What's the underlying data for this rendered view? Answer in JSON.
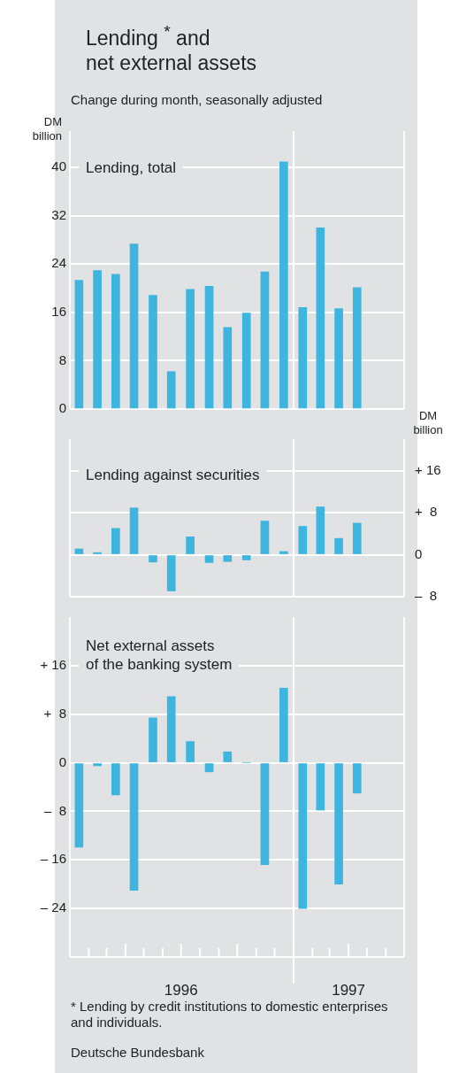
{
  "chart_data": [
    {
      "type": "bar",
      "title": "Lending $^{*}$ and\nnet external assets",
      "subtitle": "Change during month, seasonally adjusted",
      "ylabel": "DM billion",
      "x": [
        "1996-01-16",
        "1996-02-15",
        "1996-03-16",
        "1996-04-15",
        "1996-05-16",
        "1996-06-15",
        "1996-07-16",
        "1996-08-16",
        "1996-09-15",
        "1996-10-16",
        "1996-11-15",
        "1996-12-16",
        "1997-01-16",
        "1997-02-14",
        "1997-03-16",
        "1997-04-15"
      ],
      "xlim": [
        "1996-01-01",
        "1997-07-01"
      ],
      "ylim": [
        0,
        46
      ],
      "yticks": [
        0,
        8,
        16,
        24,
        32,
        40
      ],
      "grid": "y",
      "legend": false,
      "tick_labels": "y",
      "ref_lines": [
        {
          "axis": "x",
          "value": "1997-01-01",
          "color": "#ffffff"
        }
      ],
      "series": [
        {
          "name": "Lending, total",
          "color": "#3db5de",
          "values": [
            21.3,
            22.9,
            22.3,
            27.3,
            18.8,
            6.2,
            19.8,
            20.3,
            13.5,
            15.9,
            22.7,
            40.9,
            16.8,
            30.0,
            16.6,
            20.1
          ]
        }
      ]
    },
    {
      "type": "bar",
      "y2label": "DM billion",
      "x": [
        "1996-01-16",
        "1996-02-15",
        "1996-03-16",
        "1996-04-15",
        "1996-05-16",
        "1996-06-15",
        "1996-07-16",
        "1996-08-16",
        "1996-09-15",
        "1996-10-16",
        "1996-11-15",
        "1996-12-16",
        "1997-01-16",
        "1997-02-14",
        "1997-03-16",
        "1997-04-15"
      ],
      "xlim": [
        "1996-01-01",
        "1997-07-01"
      ],
      "y2lim": [
        -8,
        22
      ],
      "y2ticks": [
        {
          "value": -8,
          "label": "–  8"
        },
        0,
        {
          "value": 8,
          "label": "+  8"
        },
        {
          "value": 16,
          "label": "+ 16"
        }
      ],
      "grid": "y",
      "legend": false,
      "tick_labels": "y",
      "ref_lines": [
        {
          "axis": "x",
          "value": "1997-01-01",
          "color": "#ffffff"
        }
      ],
      "series": [
        {
          "name": "Lending against securities",
          "color": "#3db5de",
          "axis": "y2",
          "values": [
            1.1,
            0.4,
            5.0,
            8.9,
            -1.4,
            -6.9,
            3.4,
            -1.5,
            -1.3,
            -1.0,
            6.4,
            0.6,
            5.4,
            9.1,
            3.1,
            6.0
          ]
        }
      ]
    },
    {
      "type": "bar",
      "x": [
        "1996-01-16",
        "1996-02-15",
        "1996-03-16",
        "1996-04-15",
        "1996-05-16",
        "1996-06-15",
        "1996-07-16",
        "1996-08-16",
        "1996-09-15",
        "1996-10-16",
        "1996-11-15",
        "1996-12-16",
        "1997-01-16",
        "1997-02-14",
        "1997-03-16",
        "1997-04-15"
      ],
      "xlim": [
        "1996-01-01",
        "1997-07-01"
      ],
      "xticks": [
        {
          "value": "1996-01-01",
          "label": null
        },
        {
          "value": "1996-02-01",
          "label": null
        },
        {
          "value": "1996-03-01",
          "label": null
        },
        {
          "value": "1996-04-01",
          "label": null
        },
        {
          "value": "1996-05-01",
          "label": null
        },
        {
          "value": "1996-06-01",
          "label": null
        },
        {
          "value": "1996-07-01",
          "label": "1996"
        },
        {
          "value": "1996-08-01",
          "label": null
        },
        {
          "value": "1996-09-01",
          "label": null
        },
        {
          "value": "1996-10-01",
          "label": null
        },
        {
          "value": "1996-11-01",
          "label": null
        },
        {
          "value": "1996-12-01",
          "label": null
        },
        {
          "value": "1997-01-01",
          "label": null
        },
        {
          "value": "1997-02-01",
          "label": null
        },
        {
          "value": "1997-03-01",
          "label": null
        },
        {
          "value": "1997-04-01",
          "label": "1997"
        },
        {
          "value": "1997-05-01",
          "label": null
        },
        {
          "value": "1997-06-01",
          "label": null
        },
        {
          "value": "1997-07-01",
          "label": null
        }
      ],
      "ylim": [
        -32,
        24
      ],
      "yticks": [
        {
          "value": -24,
          "label": "– 24"
        },
        {
          "value": -16,
          "label": "– 16"
        },
        {
          "value": -8,
          "label": "–  8"
        },
        0,
        {
          "value": 8,
          "label": "+  8"
        },
        {
          "value": 16,
          "label": "+ 16"
        }
      ],
      "grid": "y",
      "legend": false,
      "ref_lines": [
        {
          "axis": "x",
          "value": "1997-01-01",
          "color": "#ffffff"
        }
      ],
      "annotations": [
        "* Lending by credit institutions to domestic enterprises and individuals.",
        "Deutsche Bundesbank"
      ],
      "series": [
        {
          "name": "Net external assets\nof the banking system",
          "color": "#3db5de",
          "values": [
            -13.9,
            -0.5,
            -5.3,
            -21.0,
            7.4,
            10.9,
            3.5,
            -1.5,
            1.8,
            0,
            -16.8,
            12.3,
            -24.0,
            -7.8,
            -20.0,
            -5.0
          ]
        }
      ]
    }
  ]
}
